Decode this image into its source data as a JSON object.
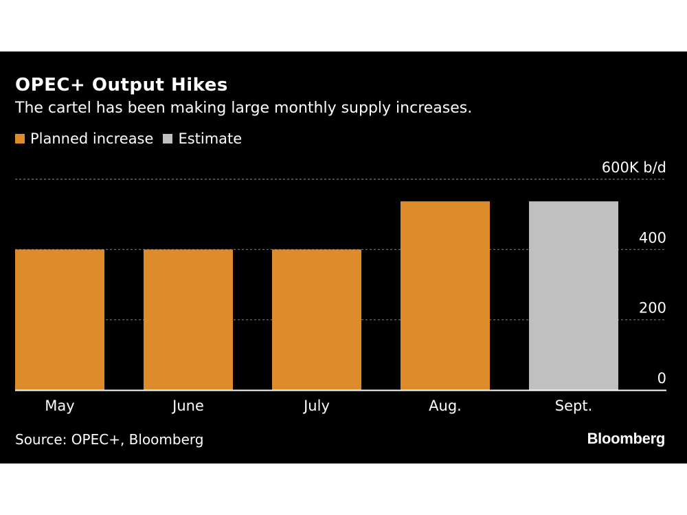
{
  "chart_data": {
    "type": "bar",
    "title": "OPEC+ Output Hikes",
    "subtitle": "The cartel has been making large monthly supply increases.",
    "categories": [
      "May",
      "June",
      "July",
      "Aug.",
      "Sept."
    ],
    "values": [
      400,
      400,
      400,
      537,
      537
    ],
    "series_assignment": [
      "Planned increase",
      "Planned increase",
      "Planned increase",
      "Planned increase",
      "Estimate"
    ],
    "legend": [
      {
        "name": "Planned increase",
        "color": "#de8b2b"
      },
      {
        "name": "Estimate",
        "color": "#c0c0c0"
      }
    ],
    "ylim": [
      0,
      600
    ],
    "yticks": [
      0,
      200,
      400,
      600
    ],
    "ytick_labels": [
      "0",
      "200",
      "400",
      "600K b/d"
    ],
    "xlabel": "",
    "ylabel": "",
    "grid": true,
    "source": "Source: OPEC+, Bloomberg"
  },
  "branding": {
    "logo_text": "Bloomberg"
  },
  "colors": {
    "background": "#000000",
    "text": "#ffffff",
    "grid": "#7a7a7a",
    "axis": "#ffffff"
  }
}
